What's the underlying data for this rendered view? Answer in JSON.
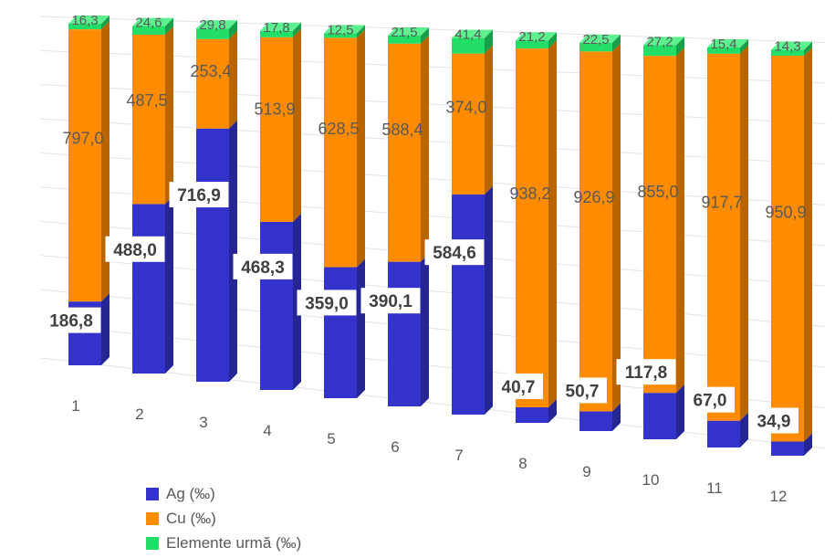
{
  "chart_data": {
    "type": "bar",
    "stacked": true,
    "percent_stacked": true,
    "three_d": true,
    "categories": [
      "1",
      "2",
      "3",
      "4",
      "5",
      "6",
      "7",
      "8",
      "9",
      "10",
      "11",
      "12"
    ],
    "series": [
      {
        "name": "Ag (‰)",
        "color": "#3333cc",
        "values": [
          186.8,
          488.0,
          716.9,
          468.3,
          359.0,
          390.1,
          584.6,
          40.7,
          50.7,
          117.8,
          67.0,
          34.9
        ],
        "labels": [
          "186,8",
          "488,0",
          "716,9",
          "468,3",
          "359,0",
          "390,1",
          "584,6",
          "40,7",
          "50,7",
          "117,8",
          "67,0",
          "34,9"
        ]
      },
      {
        "name": "Cu (‰)",
        "color": "#ff8c00",
        "values": [
          797.0,
          487.5,
          253.4,
          513.9,
          628.5,
          588.4,
          374.0,
          938.2,
          926.9,
          855.0,
          917.7,
          950.9
        ],
        "labels": [
          "797,0",
          "487,5",
          "253,4",
          "513,9",
          "628,5",
          "588,4",
          "374,0",
          "938,2",
          "926,9",
          "855,0",
          "917,7",
          "950,9"
        ]
      },
      {
        "name": "Elemente  urmă (‰)",
        "color": "#22dd66",
        "values": [
          16.3,
          24.6,
          29.8,
          17.8,
          12.5,
          21.5,
          41.4,
          21.2,
          22.5,
          27.2,
          15.4,
          14.3
        ],
        "labels": [
          "16,3",
          "24,6",
          "29,8",
          "17,8",
          "12,5",
          "21,5",
          "41,4",
          "21,2",
          "22,5",
          "27,2",
          "15,4",
          "14,3"
        ]
      }
    ],
    "legend": "bottom-left",
    "grid": true
  }
}
